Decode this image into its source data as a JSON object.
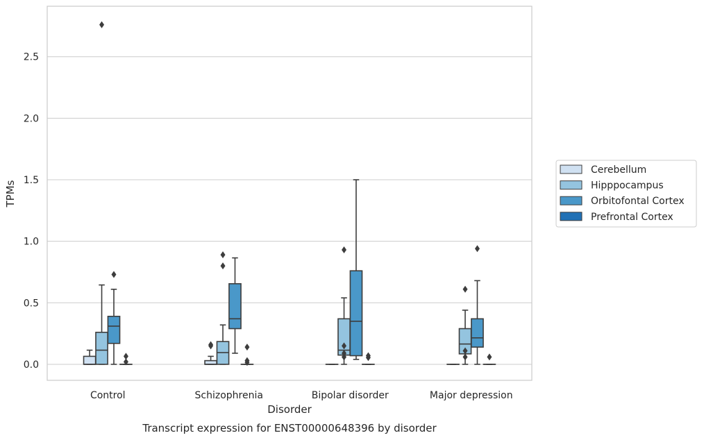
{
  "chart_data": {
    "type": "box",
    "title": "",
    "caption": "Transcript expression for ENST00000648396 by disorder",
    "xlabel": "Disorder",
    "ylabel": "TPMs",
    "ylim": [
      -0.13,
      2.91
    ],
    "yticks": [
      "0.0",
      "0.5",
      "1.0",
      "1.5",
      "2.0",
      "2.5"
    ],
    "categories": [
      "Control",
      "Schizophrenia",
      "Bipolar disorder",
      "Major depression"
    ],
    "grid": "horizontal",
    "legend_position": "right",
    "colors": [
      "#d0e1f2",
      "#94c4df",
      "#4a98c9",
      "#2171b5"
    ],
    "series": [
      {
        "name": "Cerebellum",
        "boxes": [
          {
            "min": 0,
            "q1": 0,
            "median": 0,
            "q3": 0.065,
            "max": 0.115,
            "outliers": []
          },
          {
            "min": 0,
            "q1": 0,
            "median": 0,
            "q3": 0.03,
            "max": 0.065,
            "outliers": [
              0.15,
              0.16
            ]
          },
          {
            "min": 0,
            "q1": 0,
            "median": 0,
            "q3": 0,
            "max": 0,
            "outliers": []
          },
          {
            "min": 0,
            "q1": 0,
            "median": 0,
            "q3": 0,
            "max": 0,
            "outliers": []
          }
        ]
      },
      {
        "name": "Hipppocampus",
        "boxes": [
          {
            "min": 0,
            "q1": 0,
            "median": 0.115,
            "q3": 0.26,
            "max": 0.645,
            "outliers": [
              2.76
            ]
          },
          {
            "min": 0,
            "q1": 0,
            "median": 0.095,
            "q3": 0.185,
            "max": 0.32,
            "outliers": [
              0.8,
              0.89
            ]
          },
          {
            "min": 0,
            "q1": 0.075,
            "median": 0.115,
            "q3": 0.37,
            "max": 0.54,
            "outliers": [
              0.06,
              0.09,
              0.15,
              0.93
            ]
          },
          {
            "min": 0,
            "q1": 0.085,
            "median": 0.165,
            "q3": 0.29,
            "max": 0.44,
            "outliers": [
              0.06,
              0.11,
              0.61
            ]
          }
        ]
      },
      {
        "name": "Orbitofontal Cortex",
        "boxes": [
          {
            "min": 0,
            "q1": 0.17,
            "median": 0.31,
            "q3": 0.39,
            "max": 0.61,
            "outliers": [
              0.73
            ]
          },
          {
            "min": 0.09,
            "q1": 0.29,
            "median": 0.37,
            "q3": 0.655,
            "max": 0.865,
            "outliers": []
          },
          {
            "min": 0.04,
            "q1": 0.07,
            "median": 0.35,
            "q3": 0.76,
            "max": 1.5,
            "outliers": []
          },
          {
            "min": 0,
            "q1": 0.14,
            "median": 0.215,
            "q3": 0.37,
            "max": 0.68,
            "outliers": [
              0.94
            ]
          }
        ]
      },
      {
        "name": "Prefrontal Cortex",
        "boxes": [
          {
            "min": 0,
            "q1": 0,
            "median": 0,
            "q3": 0,
            "max": 0,
            "outliers": [
              0.02,
              0.065
            ]
          },
          {
            "min": 0,
            "q1": 0,
            "median": 0,
            "q3": 0,
            "max": 0,
            "outliers": [
              0.015,
              0.03,
              0.14
            ]
          },
          {
            "min": 0,
            "q1": 0,
            "median": 0,
            "q3": 0,
            "max": 0,
            "outliers": [
              0.055,
              0.07
            ]
          },
          {
            "min": 0,
            "q1": 0,
            "median": 0,
            "q3": 0,
            "max": 0,
            "outliers": [
              0.06
            ]
          }
        ]
      }
    ]
  }
}
